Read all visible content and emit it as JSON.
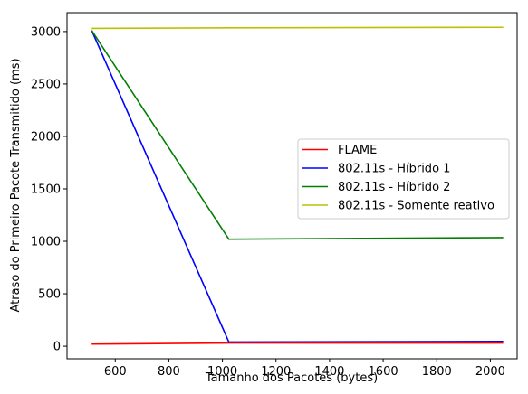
{
  "chart_data": {
    "type": "line",
    "xlabel": "Tamanho dos Pacotes (bytes)",
    "ylabel": "Atraso do Primeiro Pacote Transmitido (ms)",
    "xlim": [
      420,
      2100
    ],
    "ylim": [
      -120,
      3180
    ],
    "xticks": [
      600,
      800,
      1000,
      1200,
      1400,
      1600,
      1800,
      2000
    ],
    "yticks": [
      0,
      500,
      1000,
      1500,
      2000,
      2500,
      3000
    ],
    "grid": false,
    "legend_position": "center-right",
    "x": [
      512,
      1024,
      2048
    ],
    "series": [
      {
        "name": "FLAME",
        "color": "#ff0000",
        "values": [
          20,
          30,
          30
        ]
      },
      {
        "name": "802.11s - Híbrido 1",
        "color": "#0000ff",
        "values": [
          3010,
          40,
          45
        ]
      },
      {
        "name": "802.11s - Híbrido 2",
        "color": "#008000",
        "values": [
          3010,
          1020,
          1035
        ]
      },
      {
        "name": "802.11s - Somente reativo",
        "color": "#bfbf00",
        "values": [
          3030,
          3035,
          3040
        ]
      }
    ]
  }
}
